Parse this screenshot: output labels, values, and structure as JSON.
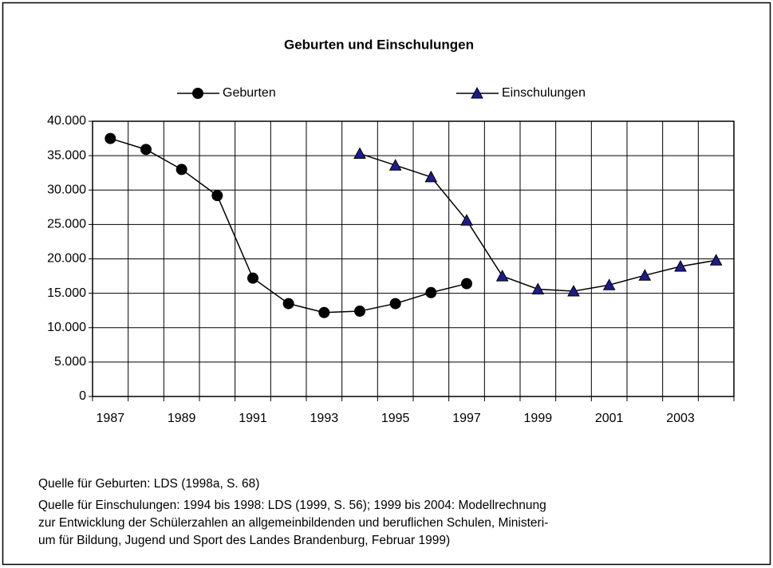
{
  "chart_data": {
    "type": "line",
    "title": "Geburten und Einschulungen",
    "categories": [
      "1987",
      null,
      "1989",
      null,
      "1991",
      null,
      "1993",
      null,
      "1995",
      null,
      "1997",
      null,
      "1999",
      null,
      "2001",
      null,
      "2003",
      null
    ],
    "series": [
      {
        "name": "Geburten",
        "color": "#000000",
        "marker": "circle",
        "marker_fill": "#000000",
        "values": [
          37500,
          35900,
          33000,
          29200,
          17200,
          13500,
          12200,
          12400,
          13500,
          15100,
          16400,
          null,
          null,
          null,
          null,
          null,
          null,
          null
        ]
      },
      {
        "name": "Einschulungen",
        "color": "#000000",
        "marker": "triangle",
        "marker_fill": "#1c1c8c",
        "values": [
          null,
          null,
          null,
          null,
          null,
          null,
          null,
          35300,
          33600,
          31900,
          25600,
          17500,
          15600,
          15300,
          16200,
          17600,
          18900,
          19800
        ]
      }
    ],
    "ylim": [
      0,
      40000
    ],
    "yticks": [
      0,
      {
        "value": 5000,
        "label": "5.000"
      },
      {
        "value": 10000,
        "label": "10.000"
      },
      {
        "value": 15000,
        "label": "15.000"
      },
      {
        "value": 20000,
        "label": "20.000"
      },
      {
        "value": 25000,
        "label": "25.000"
      },
      {
        "value": 30000,
        "label": "30.000"
      },
      {
        "value": 35000,
        "label": "35.000"
      },
      {
        "value": 40000,
        "label": "40.000"
      }
    ],
    "grid": true,
    "legend": "top",
    "source_notes": [
      "Quelle für Geburten: LDS  (1998a, S. 68)",
      "Quelle für Einschulungen: 1994 bis 1998: LDS (1999, S. 56); 1999 bis 2004: Modellrechnung",
      "zur Entwicklung der Schülerzahlen an allgemeinbildenden und beruflichen Schulen, Ministeri-",
      "um für Bildung, Jugend und Sport  des Landes Brandenburg, Februar 1999)"
    ]
  }
}
